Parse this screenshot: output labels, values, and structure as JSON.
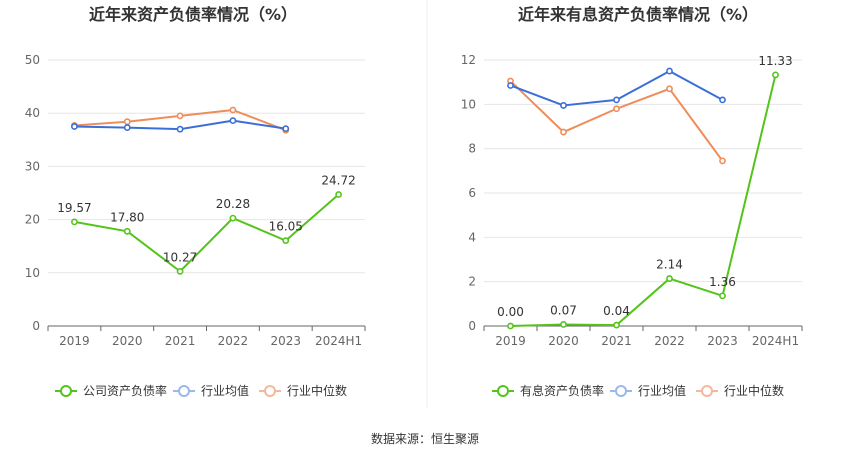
{
  "footer": {
    "source_text": "数据来源：恒生聚源"
  },
  "chart_data": [
    {
      "type": "line",
      "title": "近年来资产负债率情况（%）",
      "categories": [
        "2019",
        "2020",
        "2021",
        "2022",
        "2023",
        "2024H1"
      ],
      "ylim": [
        0,
        50
      ],
      "yticks": [
        "0",
        "10",
        "20",
        "30",
        "40",
        "50"
      ],
      "grid": true,
      "legend_position": "bottom",
      "series": [
        {
          "name": "公司资产负债率",
          "color": "#52c41a",
          "show_labels": true,
          "values": [
            19.57,
            17.8,
            10.27,
            20.28,
            16.05,
            24.72
          ],
          "labels": [
            "19.57",
            "17.80",
            "10.27",
            "20.28",
            "16.05",
            "24.72"
          ]
        },
        {
          "name": "行业均值",
          "color": "#3b6fd8",
          "show_labels": false,
          "values": [
            37.5,
            37.3,
            37.0,
            38.6,
            37.1,
            null
          ]
        },
        {
          "name": "行业中位数",
          "color": "#f08c5a",
          "show_labels": false,
          "values": [
            37.7,
            38.4,
            39.5,
            40.6,
            36.8,
            null
          ]
        }
      ]
    },
    {
      "type": "line",
      "title": "近年来有息资产负债率情况（%）",
      "categories": [
        "2019",
        "2020",
        "2021",
        "2022",
        "2023",
        "2024H1"
      ],
      "ylim": [
        0,
        12
      ],
      "yticks": [
        "0",
        "2",
        "4",
        "6",
        "8",
        "10",
        "12"
      ],
      "grid": true,
      "legend_position": "bottom",
      "series": [
        {
          "name": "有息资产负债率",
          "color": "#52c41a",
          "show_labels": true,
          "values": [
            0.0,
            0.07,
            0.04,
            2.14,
            1.36,
            11.33
          ],
          "labels": [
            "0.00",
            "0.07",
            "0.04",
            "2.14",
            "1.36",
            "11.33"
          ]
        },
        {
          "name": "行业均值",
          "color": "#3b6fd8",
          "show_labels": false,
          "values": [
            10.85,
            9.95,
            10.2,
            11.5,
            10.2,
            null
          ]
        },
        {
          "name": "行业中位数",
          "color": "#f08c5a",
          "show_labels": false,
          "values": [
            11.05,
            8.75,
            9.8,
            10.7,
            7.45,
            null
          ]
        }
      ]
    }
  ]
}
